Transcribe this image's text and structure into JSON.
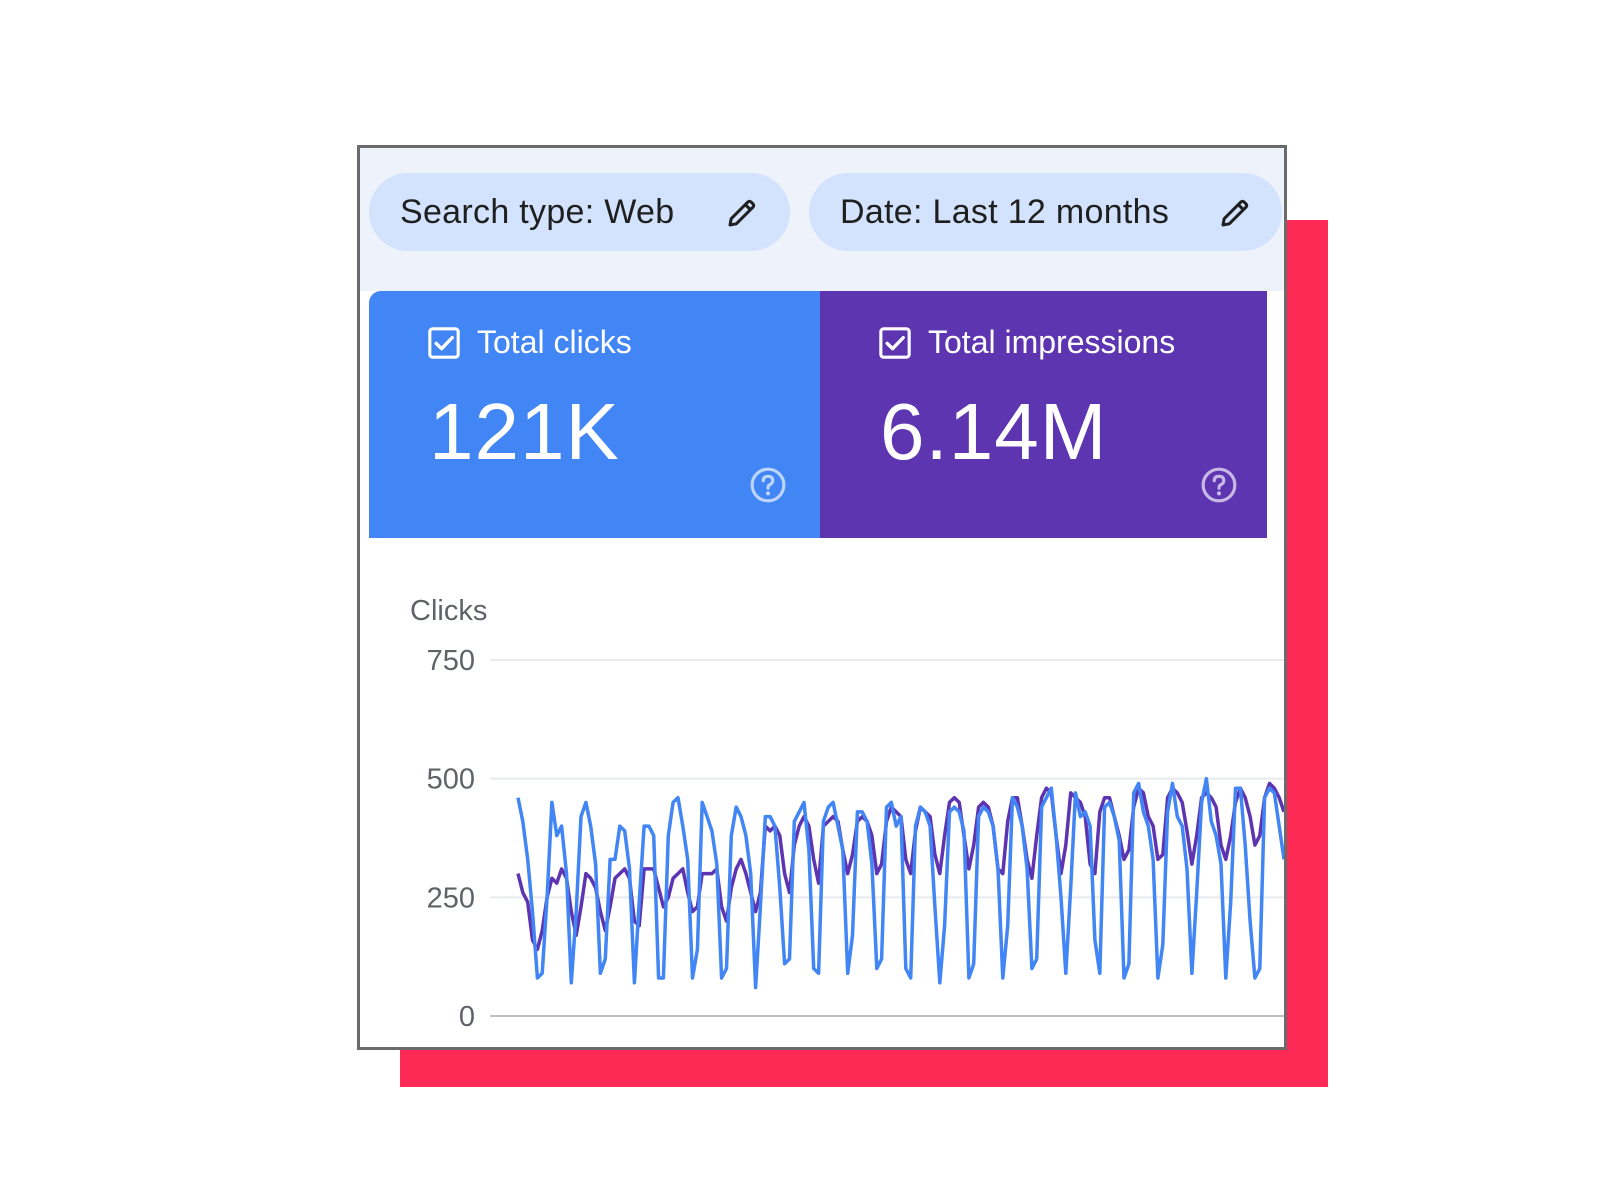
{
  "filters": {
    "search_type_label": "Search type: Web",
    "date_label": "Date: Last 12 months",
    "edit_icon": "pencil-icon"
  },
  "metrics": [
    {
      "name": "Total clicks",
      "value": "121K",
      "checked": true,
      "color": "#4285f4"
    },
    {
      "name": "Total impressions",
      "value": "6.14M",
      "checked": true,
      "color": "#5e35b1"
    }
  ],
  "colors": {
    "accent": "#ff2955",
    "clicks": "#4285f4",
    "impressions": "#5e35b1",
    "filter_bar": "#eef3fb",
    "chip": "#d3e3fd"
  },
  "chart_data": {
    "type": "line",
    "ylabel": "Clicks",
    "xlabel": "",
    "ylim": [
      0,
      750
    ],
    "yticks": [
      0,
      250,
      500,
      750
    ],
    "grid": true,
    "series": [
      {
        "name": "Total clicks",
        "color": "#4285f4",
        "values": [
          460,
          410,
          330,
          220,
          80,
          90,
          250,
          450,
          380,
          400,
          300,
          70,
          220,
          420,
          450,
          400,
          320,
          90,
          120,
          330,
          330,
          400,
          390,
          310,
          70,
          240,
          400,
          400,
          380,
          80,
          80,
          380,
          450,
          460,
          400,
          330,
          80,
          140,
          450,
          420,
          390,
          320,
          80,
          100,
          380,
          440,
          420,
          380,
          300,
          60,
          230,
          420,
          420,
          400,
          270,
          110,
          120,
          410,
          430,
          450,
          350,
          100,
          90,
          410,
          440,
          450,
          400,
          350,
          90,
          170,
          430,
          430,
          410,
          320,
          100,
          120,
          440,
          450,
          400,
          420,
          100,
          80,
          400,
          440,
          430,
          400,
          230,
          70,
          190,
          430,
          440,
          430,
          390,
          80,
          110,
          420,
          440,
          430,
          400,
          310,
          80,
          190,
          460,
          440,
          400,
          310,
          100,
          120,
          440,
          460,
          480,
          380,
          250,
          90,
          270,
          470,
          420,
          430,
          400,
          160,
          90,
          440,
          450,
          420,
          370,
          80,
          110,
          470,
          490,
          430,
          400,
          330,
          80,
          150,
          430,
          490,
          420,
          400,
          310,
          90,
          260,
          450,
          500,
          410,
          380,
          320,
          80,
          240,
          480,
          480,
          360,
          200,
          80,
          100,
          460,
          480,
          470,
          400,
          330
        ]
      },
      {
        "name": "Total impressions",
        "color": "#5e35b1",
        "values": [
          300,
          260,
          240,
          160,
          140,
          180,
          250,
          290,
          280,
          310,
          290,
          220,
          170,
          230,
          300,
          290,
          270,
          220,
          180,
          230,
          290,
          300,
          310,
          290,
          200,
          190,
          310,
          310,
          310,
          270,
          230,
          250,
          290,
          300,
          310,
          260,
          220,
          230,
          300,
          300,
          300,
          310,
          230,
          200,
          270,
          310,
          330,
          300,
          260,
          220,
          260,
          400,
          390,
          400,
          380,
          300,
          260,
          360,
          400,
          420,
          400,
          330,
          280,
          400,
          410,
          420,
          410,
          350,
          300,
          340,
          410,
          420,
          410,
          380,
          300,
          320,
          410,
          440,
          430,
          420,
          330,
          300,
          390,
          440,
          430,
          420,
          340,
          300,
          380,
          450,
          460,
          450,
          380,
          310,
          360,
          440,
          450,
          440,
          400,
          310,
          300,
          410,
          460,
          460,
          400,
          330,
          290,
          380,
          460,
          480,
          470,
          380,
          300,
          360,
          470,
          460,
          450,
          420,
          320,
          300,
          430,
          460,
          460,
          420,
          380,
          330,
          350,
          440,
          480,
          470,
          420,
          400,
          330,
          340,
          460,
          480,
          470,
          450,
          390,
          320,
          380,
          460,
          470,
          460,
          440,
          360,
          330,
          380,
          450,
          480,
          460,
          420,
          360,
          380,
          460,
          490,
          480,
          460,
          430
        ]
      }
    ]
  }
}
